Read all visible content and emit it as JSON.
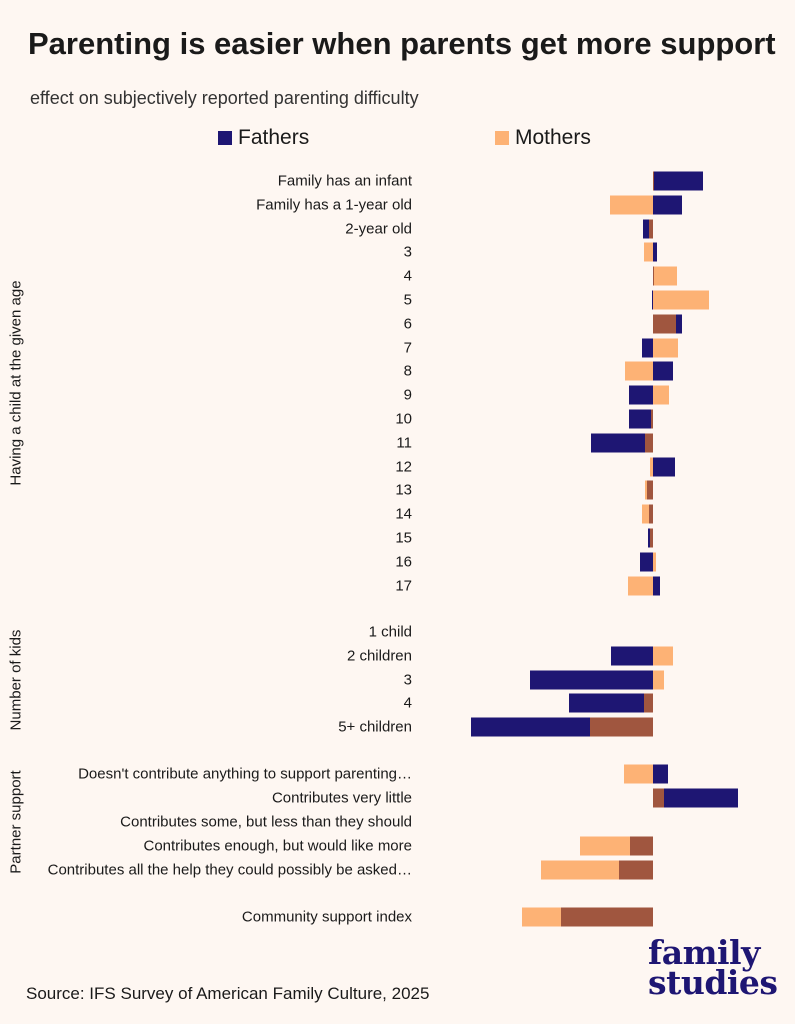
{
  "title": "Parenting is easier when parents get more support",
  "subtitle": "effect on subjectively reported parenting difficulty",
  "source": "Source: IFS Survey of American Family Culture, 2025",
  "logo": {
    "line1": "family",
    "line2": "studies"
  },
  "colors": {
    "fathers": "#1E1673",
    "mothers": "#FDB275",
    "overlap": "#A0563F",
    "background": "#FEF7F2"
  },
  "chart_data": {
    "type": "bar",
    "orientation": "horizontal",
    "title": "Parenting is easier when parents get more support",
    "subtitle": "effect on subjectively reported parenting difficulty",
    "legend": [
      {
        "name": "Fathers",
        "color": "#1E1673"
      },
      {
        "name": "Mothers",
        "color": "#FDB275"
      }
    ],
    "legend_position": "top",
    "grid": false,
    "note": "values are estimated relative bar lengths (no axis printed)",
    "groups": [
      {
        "label": "Having a child at the given age",
        "rows": [
          {
            "label": "Family has an infant",
            "fathers": 0.5,
            "mothers": 0.01
          },
          {
            "label": "Family has a 1-year old",
            "fathers": 0.29,
            "mothers": -0.43
          },
          {
            "label": "2-year old",
            "fathers": -0.1,
            "mothers": -0.04
          },
          {
            "label": "3",
            "fathers": 0.04,
            "mothers": -0.09
          },
          {
            "label": "4",
            "fathers": 0.01,
            "mothers": 0.24
          },
          {
            "label": "5",
            "fathers": -0.01,
            "mothers": 0.56
          },
          {
            "label": "6",
            "fathers": 0.29,
            "mothers": 0.23
          },
          {
            "label": "7",
            "fathers": -0.11,
            "mothers": 0.25
          },
          {
            "label": "8",
            "fathers": 0.2,
            "mothers": -0.28
          },
          {
            "label": "9",
            "fathers": -0.24,
            "mothers": 0.16
          },
          {
            "label": "10",
            "fathers": -0.24,
            "mothers": -0.02
          },
          {
            "label": "11",
            "fathers": -0.62,
            "mothers": -0.08
          },
          {
            "label": "12",
            "fathers": 0.22,
            "mothers": -0.03
          },
          {
            "label": "13",
            "fathers": -0.06,
            "mothers": -0.08
          },
          {
            "label": "14",
            "fathers": -0.04,
            "mothers": -0.11
          },
          {
            "label": "15",
            "fathers": -0.05,
            "mothers": -0.03
          },
          {
            "label": "16",
            "fathers": -0.13,
            "mothers": 0.03
          },
          {
            "label": "17",
            "fathers": 0.07,
            "mothers": -0.25
          }
        ]
      },
      {
        "label": "Number of kids",
        "rows": [
          {
            "label": "1 child",
            "fathers": 0,
            "mothers": 0
          },
          {
            "label": "2 children",
            "fathers": -0.42,
            "mothers": 0.2
          },
          {
            "label": "3",
            "fathers": -1.23,
            "mothers": 0.11
          },
          {
            "label": "4",
            "fathers": -0.84,
            "mothers": -0.09
          },
          {
            "label": "5+ children",
            "fathers": -1.82,
            "mothers": -0.63
          }
        ]
      },
      {
        "label": "Partner support",
        "rows": [
          {
            "label": "Doesn't contribute anything to support parenting…",
            "fathers": 0.15,
            "mothers": -0.29
          },
          {
            "label": "Contributes very little",
            "fathers": 0.85,
            "mothers": 0.11
          },
          {
            "label": "Contributes some, but less than they should",
            "fathers": 0,
            "mothers": 0
          },
          {
            "label": "Contributes enough, but would like more",
            "fathers": -0.23,
            "mothers": -0.73
          },
          {
            "label": "Contributes all the help they could possibly be asked…",
            "fathers": -0.34,
            "mothers": -1.12
          }
        ]
      },
      {
        "label": "",
        "rows": [
          {
            "label": "Community support index",
            "fathers": -0.92,
            "mothers": -1.31
          }
        ]
      }
    ]
  }
}
